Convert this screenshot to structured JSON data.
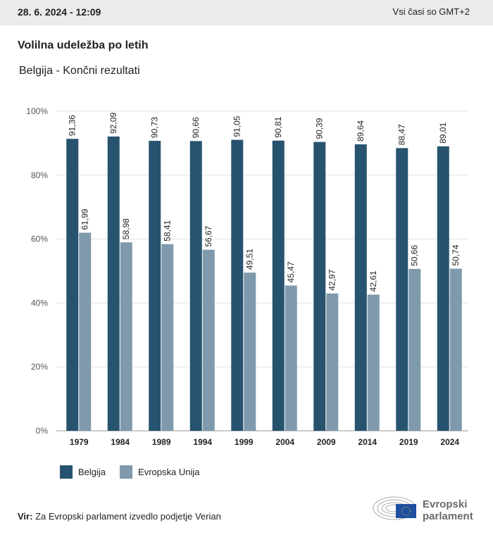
{
  "header": {
    "datetime": "28. 6. 2024 - 12:09",
    "timezone": "Vsi časi so GMT+2"
  },
  "title": "Volilna udeležba po letih",
  "subtitle": "Belgija - Končni rezultati",
  "chart_data": {
    "type": "bar",
    "categories": [
      "1979",
      "1984",
      "1989",
      "1994",
      "1999",
      "2004",
      "2009",
      "2014",
      "2019",
      "2024"
    ],
    "series": [
      {
        "name": "Belgija",
        "color": "#27536f",
        "values": [
          91.36,
          92.09,
          90.73,
          90.66,
          91.05,
          90.81,
          90.39,
          89.64,
          88.47,
          89.01
        ],
        "labels": [
          "91,36",
          "92,09",
          "90,73",
          "90,66",
          "91,05",
          "90,81",
          "90,39",
          "89,64",
          "88,47",
          "89,01"
        ]
      },
      {
        "name": "Evropska Unija",
        "color": "#7f9aad",
        "values": [
          61.99,
          58.98,
          58.41,
          56.67,
          49.51,
          45.47,
          42.97,
          42.61,
          50.66,
          50.74
        ],
        "labels": [
          "61,99",
          "58,98",
          "58,41",
          "56,67",
          "49,51",
          "45,47",
          "42,97",
          "42,61",
          "50,66",
          "50,74"
        ]
      }
    ],
    "yticks": [
      "0%",
      "20%",
      "40%",
      "60%",
      "80%",
      "100%"
    ],
    "ylim": [
      0,
      100
    ],
    "grid": true,
    "legend": "bottom-left"
  },
  "source": {
    "label": "Vir:",
    "text": "Za Evropski parlament izvedlo podjetje Verian"
  },
  "logo": {
    "line1": "Evropski",
    "line2": "parlament"
  }
}
